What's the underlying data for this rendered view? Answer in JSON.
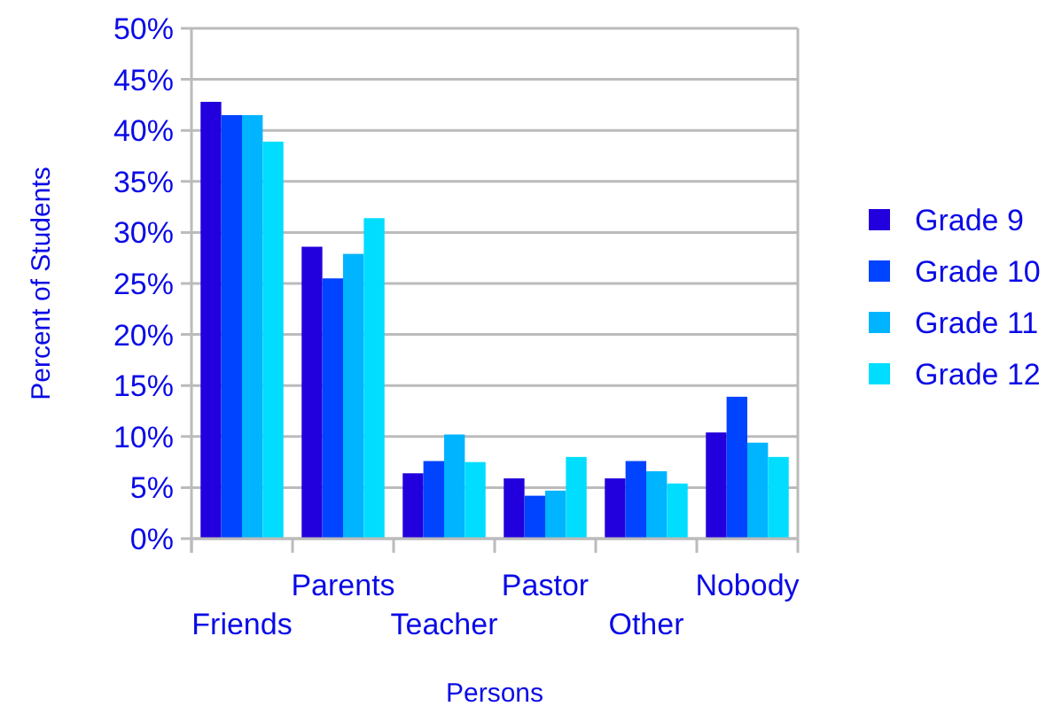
{
  "chart_data": {
    "type": "bar",
    "xlabel": "Persons",
    "ylabel": "Percent of Students",
    "categories": [
      "Friends",
      "Parents",
      "Teacher",
      "Pastor",
      "Other",
      "Nobody"
    ],
    "series": [
      {
        "name": "Grade 9",
        "color": "#2200dd",
        "values": [
          42.8,
          28.6,
          6.4,
          5.9,
          5.9,
          10.4
        ]
      },
      {
        "name": "Grade 10",
        "color": "#0044ff",
        "values": [
          41.5,
          25.5,
          7.6,
          4.2,
          7.6,
          13.9
        ]
      },
      {
        "name": "Grade 11",
        "color": "#00b4ff",
        "values": [
          41.5,
          27.9,
          10.2,
          4.7,
          6.6,
          9.4
        ]
      },
      {
        "name": "Grade 12",
        "color": "#00ddff",
        "values": [
          38.9,
          31.4,
          7.5,
          8.0,
          5.4,
          8.0
        ]
      }
    ],
    "ylim": [
      0,
      50
    ],
    "yticks": [
      {
        "value": 0,
        "label": "0%"
      },
      {
        "value": 5,
        "label": "5%"
      },
      {
        "value": 10,
        "label": "10%"
      },
      {
        "value": 15,
        "label": "15%"
      },
      {
        "value": 20,
        "label": "20%"
      },
      {
        "value": 25,
        "label": "25%"
      },
      {
        "value": 30,
        "label": "30%"
      },
      {
        "value": 35,
        "label": "35%"
      },
      {
        "value": 40,
        "label": "40%"
      },
      {
        "value": 45,
        "label": "45%"
      },
      {
        "value": 50,
        "label": "50%"
      }
    ],
    "grid": "y",
    "legend": "right"
  }
}
